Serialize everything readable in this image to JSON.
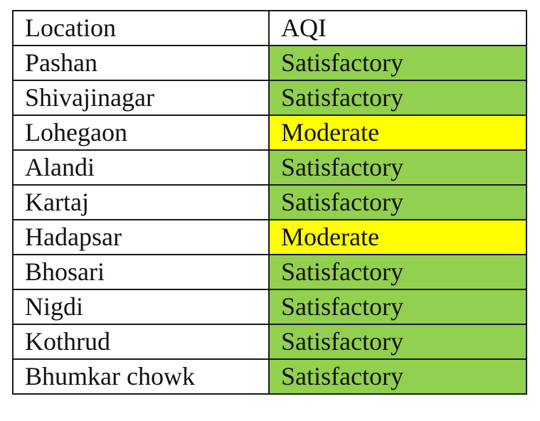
{
  "table": {
    "headers": [
      "Location",
      "AQI"
    ],
    "rows": [
      {
        "location": "Pashan",
        "aqi": "Satisfactory",
        "color": "#92d050"
      },
      {
        "location": "Shivajinagar",
        "aqi": "Satisfactory",
        "color": "#92d050"
      },
      {
        "location": "Lohegaon",
        "aqi": "Moderate",
        "color": "#ffff00"
      },
      {
        "location": "Alandi",
        "aqi": "Satisfactory",
        "color": "#92d050"
      },
      {
        "location": "Kartaj",
        "aqi": "Satisfactory",
        "color": "#92d050"
      },
      {
        "location": "Hadapsar",
        "aqi": "Moderate",
        "color": "#ffff00"
      },
      {
        "location": "Bhosari",
        "aqi": "Satisfactory",
        "color": "#92d050"
      },
      {
        "location": "Nigdi",
        "aqi": "Satisfactory",
        "color": "#92d050"
      },
      {
        "location": "Kothrud",
        "aqi": "Satisfactory",
        "color": "#92d050"
      },
      {
        "location": "Bhumkar chowk",
        "aqi": "Satisfactory",
        "color": "#92d050"
      }
    ]
  },
  "colors": {
    "satisfactory": "#92d050",
    "moderate": "#ffff00",
    "border": "#1a1a1a"
  }
}
